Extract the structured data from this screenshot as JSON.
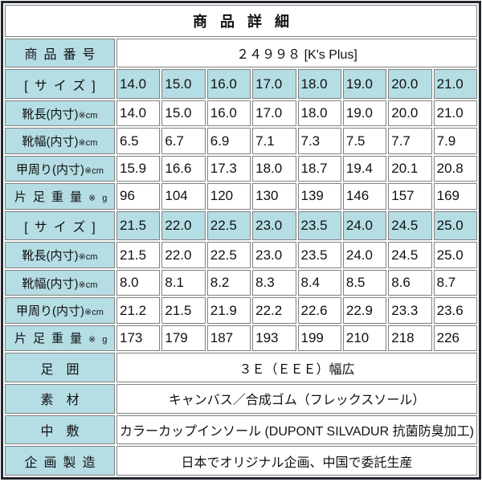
{
  "page": {
    "title": "商品詳細"
  },
  "colors": {
    "header_bg": "#b5dde4",
    "outer_border": "#23272e",
    "cell_border": "#808080",
    "text": "#111111",
    "background": "#ffffff"
  },
  "product_number": {
    "label": "商品番号",
    "value": "２４９９８ [K's Plus]"
  },
  "size_blocks": [
    {
      "size_label": "[サイズ]",
      "sizes": [
        "14.0",
        "15.0",
        "16.0",
        "17.0",
        "18.0",
        "19.0",
        "20.0",
        "21.0"
      ],
      "rows": [
        {
          "label": "靴長(内寸)",
          "unit": "※cm",
          "values": [
            "14.0",
            "15.0",
            "16.0",
            "17.0",
            "18.0",
            "19.0",
            "20.0",
            "21.0"
          ]
        },
        {
          "label": "靴幅(内寸)",
          "unit": "※cm",
          "values": [
            "6.5",
            "6.7",
            "6.9",
            "7.1",
            "7.3",
            "7.5",
            "7.7",
            "7.9"
          ]
        },
        {
          "label": "甲周り(内寸)",
          "unit": "※cm",
          "values": [
            "15.9",
            "16.6",
            "17.3",
            "18.0",
            "18.7",
            "19.4",
            "20.1",
            "20.8"
          ]
        },
        {
          "label": "片足重量",
          "unit": "※g",
          "values": [
            "96",
            "104",
            "120",
            "130",
            "139",
            "146",
            "157",
            "169"
          ]
        }
      ]
    },
    {
      "size_label": "[サイズ]",
      "sizes": [
        "21.5",
        "22.0",
        "22.5",
        "23.0",
        "23.5",
        "24.0",
        "24.5",
        "25.0"
      ],
      "rows": [
        {
          "label": "靴長(内寸)",
          "unit": "※cm",
          "values": [
            "21.5",
            "22.0",
            "22.5",
            "23.0",
            "23.5",
            "24.0",
            "24.5",
            "25.0"
          ]
        },
        {
          "label": "靴幅(内寸)",
          "unit": "※cm",
          "values": [
            "8.0",
            "8.1",
            "8.2",
            "8.3",
            "8.4",
            "8.5",
            "8.6",
            "8.7"
          ]
        },
        {
          "label": "甲周り(内寸)",
          "unit": "※cm",
          "values": [
            "21.2",
            "21.5",
            "21.9",
            "22.2",
            "22.6",
            "22.9",
            "23.3",
            "23.6"
          ]
        },
        {
          "label": "片足重量",
          "unit": "※g",
          "values": [
            "173",
            "179",
            "187",
            "193",
            "199",
            "210",
            "218",
            "226"
          ]
        }
      ]
    }
  ],
  "info_rows": [
    {
      "label": "足囲",
      "value": "３Ｅ（ＥＥＥ）幅広"
    },
    {
      "label": "素材",
      "value": "キャンバス／合成ゴム（フレックスソール）"
    },
    {
      "label": "中敷",
      "value": "カラーカップインソール (DUPONT SILVADUR 抗菌防臭加工)"
    },
    {
      "label": "企画製造",
      "value": "日本でオリジナル企画、中国で委託生産"
    }
  ]
}
